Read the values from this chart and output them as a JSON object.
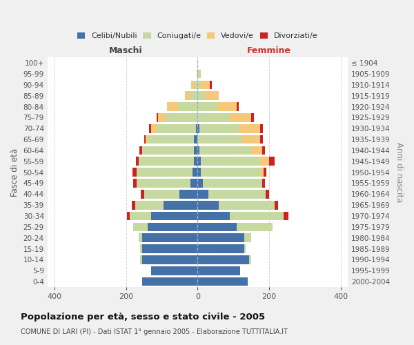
{
  "age_groups": [
    "0-4",
    "5-9",
    "10-14",
    "15-19",
    "20-24",
    "25-29",
    "30-34",
    "35-39",
    "40-44",
    "45-49",
    "50-54",
    "55-59",
    "60-64",
    "65-69",
    "70-74",
    "75-79",
    "80-84",
    "85-89",
    "90-94",
    "95-99",
    "100+"
  ],
  "birth_years": [
    "2000-2004",
    "1995-1999",
    "1990-1994",
    "1985-1989",
    "1980-1984",
    "1975-1979",
    "1970-1974",
    "1965-1969",
    "1960-1964",
    "1955-1959",
    "1950-1954",
    "1945-1949",
    "1940-1944",
    "1935-1939",
    "1930-1934",
    "1925-1929",
    "1920-1924",
    "1915-1919",
    "1910-1914",
    "1905-1909",
    "≤ 1904"
  ],
  "maschi_celibi": [
    155,
    130,
    155,
    155,
    155,
    140,
    130,
    95,
    50,
    20,
    15,
    10,
    10,
    10,
    5,
    0,
    0,
    0,
    0,
    0,
    0
  ],
  "maschi_coniugati": [
    0,
    0,
    5,
    5,
    10,
    40,
    60,
    80,
    100,
    150,
    155,
    155,
    145,
    130,
    110,
    90,
    55,
    20,
    8,
    3,
    0
  ],
  "maschi_vedovi": [
    0,
    0,
    0,
    0,
    0,
    0,
    0,
    0,
    0,
    0,
    0,
    0,
    0,
    5,
    15,
    20,
    30,
    15,
    10,
    0,
    0
  ],
  "maschi_divorziati": [
    0,
    0,
    0,
    0,
    0,
    0,
    8,
    8,
    8,
    10,
    12,
    8,
    8,
    5,
    5,
    5,
    0,
    0,
    0,
    0,
    0
  ],
  "femmine_celibi": [
    140,
    120,
    145,
    130,
    130,
    110,
    90,
    60,
    30,
    15,
    10,
    10,
    5,
    0,
    5,
    0,
    0,
    0,
    0,
    0,
    0
  ],
  "femmine_coniugati": [
    0,
    0,
    5,
    5,
    20,
    100,
    150,
    155,
    160,
    165,
    165,
    165,
    145,
    125,
    110,
    90,
    55,
    20,
    10,
    5,
    0
  ],
  "femmine_vedovi": [
    0,
    0,
    0,
    0,
    0,
    0,
    0,
    0,
    0,
    0,
    10,
    25,
    30,
    50,
    60,
    60,
    55,
    40,
    25,
    5,
    0
  ],
  "femmine_divorziati": [
    0,
    0,
    0,
    0,
    0,
    0,
    15,
    10,
    10,
    8,
    8,
    15,
    8,
    8,
    8,
    8,
    5,
    0,
    5,
    0,
    0
  ],
  "colors": {
    "celibi": "#4472a8",
    "coniugati": "#c5d9a0",
    "vedovi": "#f5c87a",
    "divorziati": "#cc2222"
  },
  "title": "Popolazione per età, sesso e stato civile - 2005",
  "subtitle": "COMUNE DI LARI (PI) - Dati ISTAT 1° gennaio 2005 - Elaborazione TUTTITALIA.IT",
  "xlabel_left": "Maschi",
  "xlabel_right": "Femmine",
  "ylabel_left": "Fasce di età",
  "ylabel_right": "Anni di nascita",
  "xlim": 420,
  "background_color": "#f0f0f0",
  "bar_background": "#ffffff"
}
